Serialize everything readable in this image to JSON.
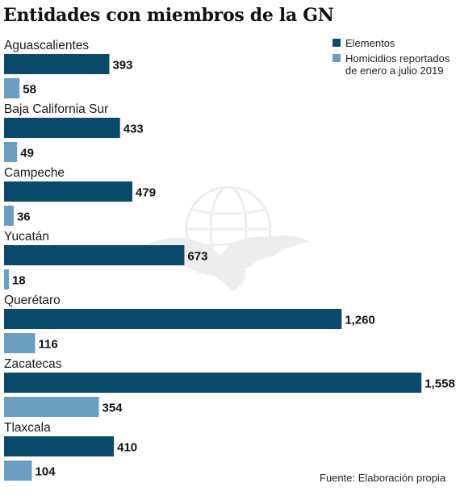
{
  "title": "Entidades con miembros de la GN",
  "legend": [
    {
      "name": "Elementos",
      "color": "#0a4a6b"
    },
    {
      "name": "Homicidios reportados de enero a julio 2019",
      "color": "#6b9fc2"
    }
  ],
  "source": "Fuente: Elaboración propia",
  "watermark": "eagle-globe-logo-icon",
  "chart_data": {
    "type": "bar",
    "orientation": "horizontal",
    "title": "Entidades con miembros de la GN",
    "categories": [
      "Aguascalientes",
      "Baja California Sur",
      "Campeche",
      "Yucatán",
      "Querétaro",
      "Zacatecas",
      "Tlaxcala"
    ],
    "series": [
      {
        "name": "Elementos",
        "color": "#0a4a6b",
        "values": [
          393,
          433,
          479,
          673,
          1260,
          1558,
          410
        ],
        "labels": [
          "393",
          "433",
          "479",
          "673",
          "1,260",
          "1,558",
          "410"
        ]
      },
      {
        "name": "Homicidios reportados de enero a julio 2019",
        "color": "#6b9fc2",
        "values": [
          58,
          49,
          36,
          18,
          116,
          354,
          104
        ],
        "labels": [
          "58",
          "49",
          "36",
          "18",
          "116",
          "354",
          "104"
        ]
      }
    ],
    "legend_position": "top-right",
    "grid": false,
    "axes_visible": false
  }
}
